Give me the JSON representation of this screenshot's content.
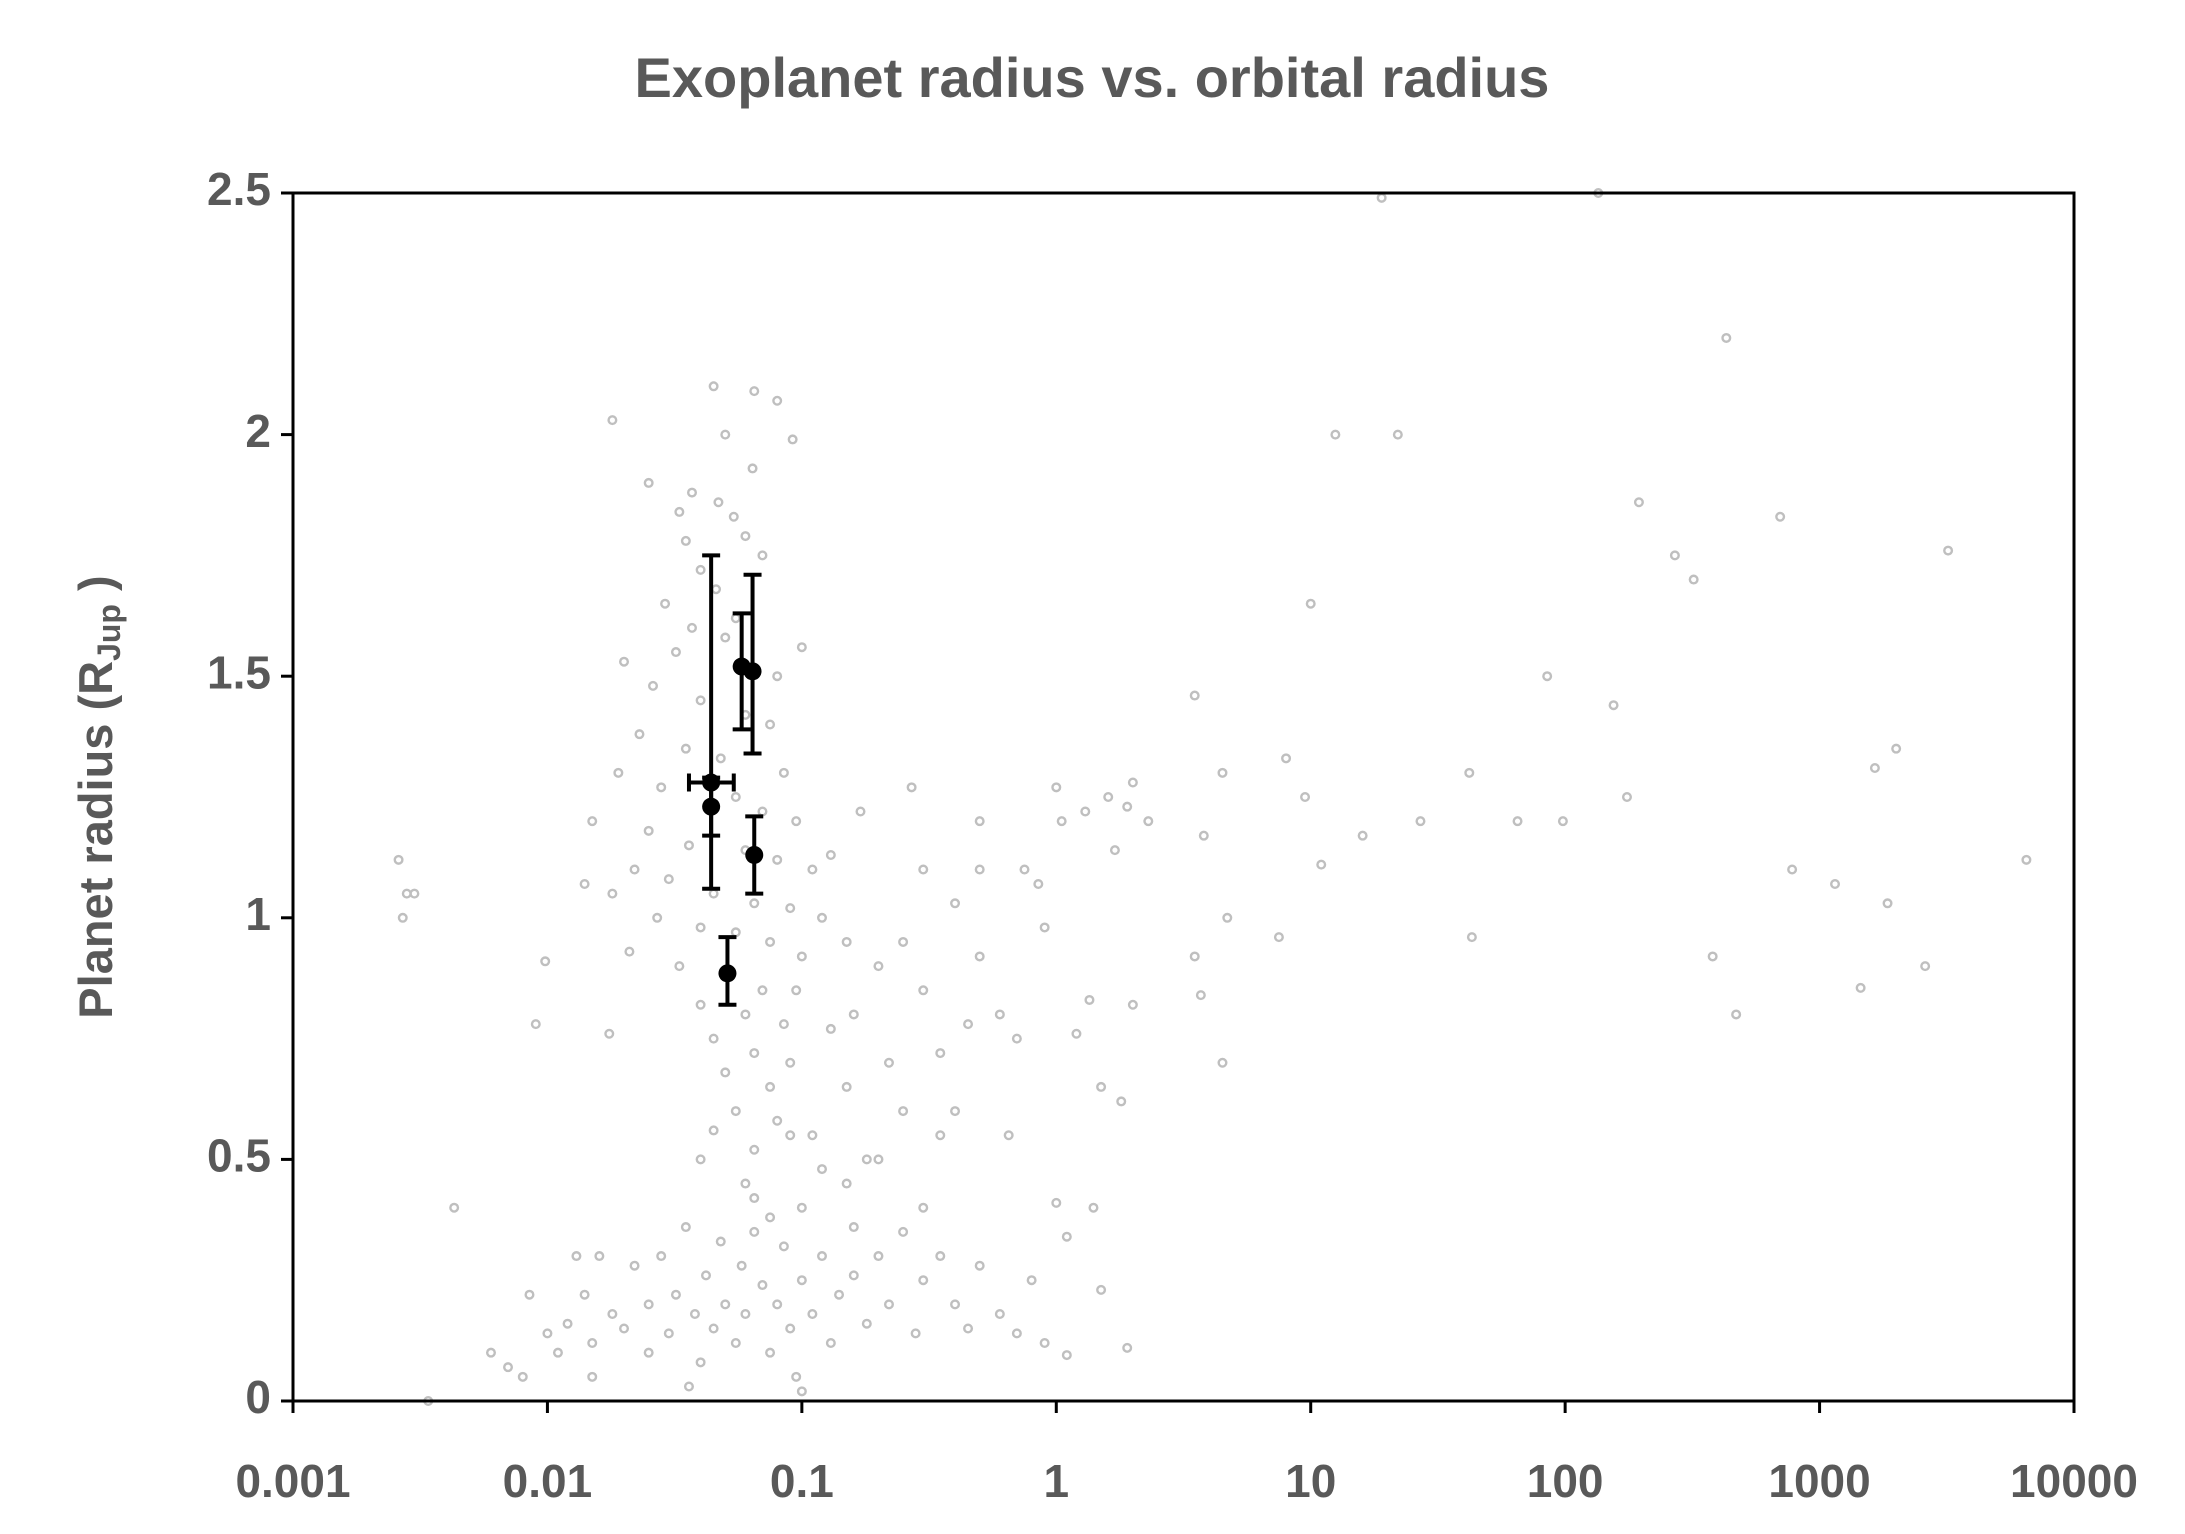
{
  "chart_data": {
    "type": "scatter",
    "title": "Exoplanet radius vs. orbital radius",
    "y_label": {
      "text": "Planet radius (R",
      "sub": "Jup",
      "end": " )"
    },
    "xlim": [
      0.001,
      10000
    ],
    "xticks": [
      0.001,
      0.01,
      0.1,
      1,
      10,
      100,
      1000,
      10000
    ],
    "xscale": "log",
    "ylim": [
      0,
      2.5
    ],
    "yticks": [
      0,
      0.5,
      1,
      1.5,
      2,
      2.5
    ],
    "series": [
      {
        "color": "#bfbfbf",
        "x": [
          19,
          135,
          430,
          12.5,
          22,
          195,
          700,
          3200,
          270,
          320,
          10,
          85,
          155,
          3.5,
          2000,
          1650,
          8,
          4.5,
          42,
          9.5,
          175,
          27,
          65,
          98,
          16,
          6500,
          11,
          780,
          1150,
          1850,
          4.7,
          7.5,
          43,
          380,
          2600,
          1450,
          470,
          4.5,
          3.5,
          3.7,
          2.0,
          1.9,
          1.0,
          1.05,
          1.6,
          2.3,
          3.8,
          1.3,
          1.7,
          1.5,
          1.8,
          2.0,
          1.2,
          1.35,
          0.85,
          0.75,
          0.9,
          1.0,
          1.1,
          1.4,
          1.5,
          1.9,
          1.1,
          0.0026,
          0.0028,
          0.0027,
          0.003,
          0.0034,
          0.0043,
          0.0098,
          0.009,
          0.018,
          0.0175,
          0.045,
          0.065,
          0.08,
          0.05,
          0.092,
          0.064,
          0.025,
          0.037,
          0.047,
          0.033,
          0.054,
          0.035,
          0.06,
          0.04,
          0.07,
          0.029,
          0.046,
          0.055,
          0.037,
          0.1,
          0.02,
          0.032,
          0.05,
          0.08,
          0.026,
          0.04,
          0.06,
          0.075,
          0.023,
          0.035,
          0.048,
          0.085,
          0.019,
          0.028,
          0.055,
          0.07,
          0.095,
          0.015,
          0.025,
          0.036,
          0.06,
          0.08,
          0.11,
          0.014,
          0.022,
          0.03,
          0.045,
          0.065,
          0.09,
          0.12,
          0.018,
          0.027,
          0.04,
          0.055,
          0.075,
          0.1,
          0.021,
          0.033,
          0.05,
          0.07,
          0.095,
          0.04,
          0.06,
          0.085,
          0.13,
          0.045,
          0.065,
          0.09,
          0.05,
          0.075,
          0.055,
          0.08,
          0.045,
          0.065,
          0.11,
          0.16,
          0.2,
          0.25,
          0.3,
          0.4,
          0.5,
          0.3,
          0.22,
          0.35,
          0.45,
          0.6,
          0.5,
          0.7,
          0.25,
          0.35,
          0.18,
          0.27,
          0.5,
          0.4,
          0.65,
          0.15,
          0.13,
          0.17,
          0.15,
          0.006,
          0.007,
          0.008,
          0.0085,
          0.01,
          0.011,
          0.012,
          0.013,
          0.014,
          0.015,
          0.016,
          0.018,
          0.02,
          0.022,
          0.025,
          0.025,
          0.028,
          0.03,
          0.032,
          0.035,
          0.038,
          0.04,
          0.042,
          0.045,
          0.048,
          0.05,
          0.055,
          0.058,
          0.06,
          0.065,
          0.07,
          0.075,
          0.08,
          0.085,
          0.09,
          0.095,
          0.1,
          0.1,
          0.11,
          0.12,
          0.13,
          0.14,
          0.15,
          0.16,
          0.18,
          0.2,
          0.22,
          0.25,
          0.28,
          0.3,
          0.35,
          0.4,
          0.45,
          0.5,
          0.6,
          0.7,
          0.8,
          0.9,
          0.075,
          0.12,
          0.2,
          0.06,
          0.16,
          0.3,
          0.04,
          0.09,
          0.1,
          0.015,
          0.036,
          0.065
        ],
        "values": [
          2.49,
          2.5,
          2.2,
          2.0,
          2.0,
          1.86,
          1.83,
          1.76,
          1.75,
          1.7,
          1.65,
          1.5,
          1.44,
          1.46,
          1.35,
          1.31,
          1.33,
          1.3,
          1.3,
          1.25,
          1.25,
          1.2,
          1.2,
          1.2,
          1.17,
          1.12,
          1.11,
          1.1,
          1.07,
          1.03,
          1.0,
          0.96,
          0.96,
          0.92,
          0.9,
          0.855,
          0.8,
          0.7,
          0.92,
          0.84,
          1.28,
          1.23,
          1.27,
          1.2,
          1.25,
          1.2,
          1.17,
          1.22,
          1.14,
          0.65,
          0.62,
          0.82,
          0.76,
          0.83,
          1.07,
          1.1,
          0.98,
          0.41,
          0.34,
          0.4,
          0.23,
          0.11,
          0.095,
          1.12,
          1.05,
          1.0,
          1.05,
          0.0,
          0.4,
          0.91,
          0.78,
          2.03,
          0.76,
          2.1,
          2.09,
          2.07,
          2.0,
          1.99,
          1.93,
          1.9,
          1.88,
          1.86,
          1.84,
          1.83,
          1.78,
          1.79,
          1.72,
          1.75,
          1.65,
          1.68,
          1.62,
          1.6,
          1.56,
          1.53,
          1.55,
          1.58,
          1.5,
          1.48,
          1.45,
          1.42,
          1.4,
          1.38,
          1.35,
          1.33,
          1.3,
          1.3,
          1.27,
          1.25,
          1.22,
          1.2,
          1.2,
          1.18,
          1.15,
          1.14,
          1.12,
          1.1,
          1.07,
          1.1,
          1.08,
          1.05,
          1.03,
          1.02,
          1.0,
          1.05,
          1.0,
          0.98,
          0.97,
          0.95,
          0.92,
          0.93,
          0.9,
          0.88,
          0.85,
          0.85,
          0.82,
          0.8,
          0.78,
          0.77,
          0.75,
          0.72,
          0.7,
          0.68,
          0.65,
          0.6,
          0.58,
          0.56,
          0.52,
          0.55,
          0.8,
          0.9,
          0.95,
          1.1,
          1.03,
          1.1,
          0.85,
          0.7,
          0.72,
          0.78,
          0.8,
          0.92,
          0.75,
          0.6,
          0.55,
          0.5,
          1.27,
          1.2,
          0.6,
          0.55,
          0.65,
          1.13,
          1.22,
          0.95,
          0.1,
          0.07,
          0.05,
          0.22,
          0.14,
          0.1,
          0.16,
          0.3,
          0.22,
          0.12,
          0.3,
          0.18,
          0.15,
          0.28,
          0.1,
          0.2,
          0.3,
          0.14,
          0.22,
          0.36,
          0.18,
          0.08,
          0.26,
          0.15,
          0.33,
          0.2,
          0.12,
          0.28,
          0.18,
          0.42,
          0.24,
          0.1,
          0.2,
          0.32,
          0.15,
          0.05,
          0.25,
          0.4,
          0.18,
          0.3,
          0.12,
          0.22,
          0.45,
          0.26,
          0.16,
          0.3,
          0.2,
          0.35,
          0.14,
          0.25,
          0.3,
          0.2,
          0.15,
          0.28,
          0.18,
          0.14,
          0.25,
          0.12,
          0.38,
          0.48,
          0.5,
          0.45,
          0.36,
          0.4,
          0.5,
          0.55,
          0.02,
          0.05,
          0.03,
          0.35
        ]
      },
      {
        "color": "#000000",
        "x": [
          0.044,
          0.044,
          0.058,
          0.064,
          0.065,
          0.051
        ],
        "values": [
          1.28,
          1.23,
          1.52,
          1.51,
          1.13,
          0.885
        ],
        "yerr_minus": [
          0.22,
          0.06,
          0.13,
          0.17,
          0.08,
          0.065
        ],
        "yerr_plus": [
          0.47,
          0.06,
          0.11,
          0.2,
          0.08,
          0.075
        ],
        "xerr_minus": [
          0.008,
          null,
          null,
          null,
          null,
          null
        ],
        "xerr_plus": [
          0.01,
          null,
          null,
          null,
          null,
          null
        ]
      }
    ]
  }
}
